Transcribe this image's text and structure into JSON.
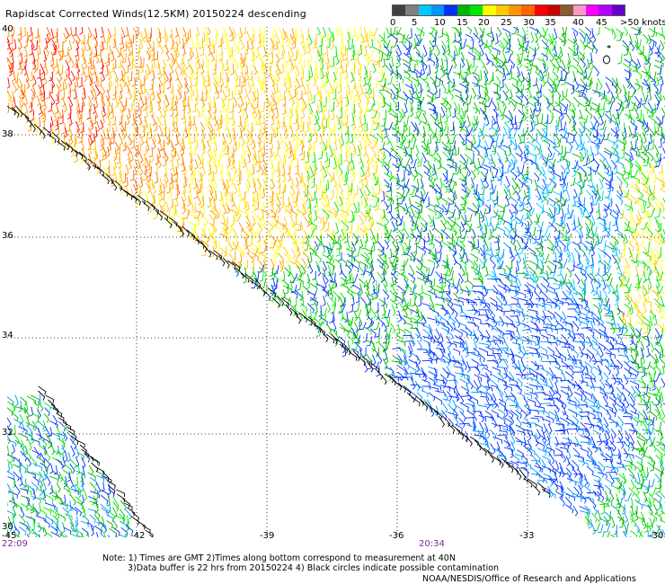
{
  "title": "Rapidscat Corrected Winds(12.5KM) 20150224 descending",
  "scale": {
    "colors": [
      "#404040",
      "#7f7f7f",
      "#00c8ff",
      "#0096ff",
      "#0032ff",
      "#00b400",
      "#00e600",
      "#ffff00",
      "#ffc800",
      "#ff9600",
      "#ff6400",
      "#ff0000",
      "#c80000",
      "#8c5a32",
      "#ff96c8",
      "#ff00ff",
      "#b400ff",
      "#6400c8"
    ],
    "labels": [
      "0",
      "5",
      "10",
      "15",
      "20",
      "25",
      "30",
      "35",
      "40",
      "45",
      ">50 knots"
    ]
  },
  "axes": {
    "lat_labels": [
      "40",
      "38",
      "36",
      "34",
      "32",
      "30"
    ],
    "lon_labels": [
      "-45",
      "-42",
      "-39",
      "-36",
      "-33",
      "-30"
    ]
  },
  "times": {
    "left": "22:09",
    "right": "20:34"
  },
  "notes": {
    "line1": "Note: 1) Times are GMT 2)Times along bottom correspond to measurement at 40N",
    "line2": "3)Data buffer is 22 hrs from 20150224 4) Black circles indicate possible contamination"
  },
  "credit": "NOAA/NESDIS/Office of Research and Applications"
}
